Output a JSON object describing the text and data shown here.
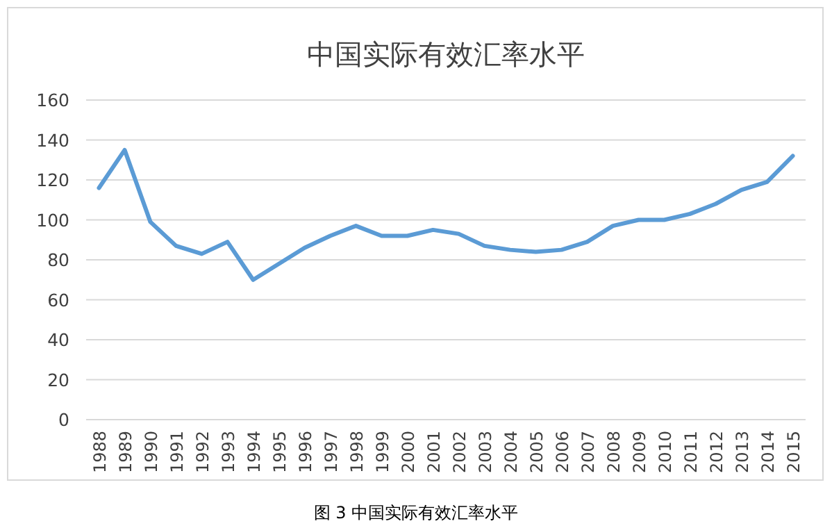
{
  "chart_data": {
    "type": "line",
    "title": "中国实际有效汇率水平",
    "categories": [
      "1988",
      "1989",
      "1990",
      "1991",
      "1992",
      "1993",
      "1994",
      "1995",
      "1996",
      "1997",
      "1998",
      "1999",
      "2000",
      "2001",
      "2002",
      "2003",
      "2004",
      "2005",
      "2006",
      "2007",
      "2008",
      "2009",
      "2010",
      "2011",
      "2012",
      "2013",
      "2014",
      "2015"
    ],
    "series": [
      {
        "color": "#5b9bd5",
        "values": [
          116,
          135,
          99,
          87,
          83,
          89,
          70,
          78,
          86,
          92,
          97,
          92,
          92,
          95,
          93,
          87,
          85,
          84,
          85,
          89,
          97,
          100,
          100,
          103,
          108,
          115,
          119,
          132
        ]
      }
    ],
    "ylim": [
      0,
      160
    ],
    "yticks": [
      0,
      20,
      40,
      60,
      80,
      100,
      120,
      140,
      160
    ],
    "grid": "y",
    "marker": "none",
    "line_style": "solid",
    "annotations": [
      "图 3 中国实际有效汇率水平"
    ]
  }
}
